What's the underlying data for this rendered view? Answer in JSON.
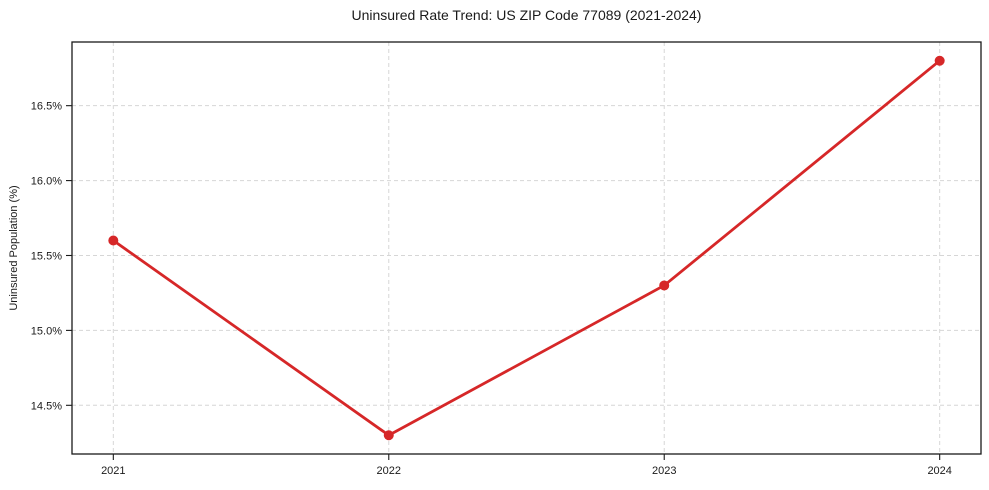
{
  "chart_data": {
    "type": "line",
    "title": "Uninsured Rate Trend: US ZIP Code 77089 (2021-2024)",
    "xlabel": "",
    "ylabel": "Uninsured Population (%)",
    "x": [
      2021,
      2022,
      2023,
      2024
    ],
    "x_tick_labels": [
      "2021",
      "2022",
      "2023",
      "2024"
    ],
    "series": [
      {
        "name": "Uninsured rate",
        "values": [
          15.6,
          14.3,
          15.3,
          16.8
        ]
      }
    ],
    "y_ticks": [
      14.5,
      15.0,
      15.5,
      16.0,
      16.5
    ],
    "y_tick_labels": [
      "14.5%",
      "15.0%",
      "15.5%",
      "16.0%",
      "16.5%"
    ],
    "xlim": [
      2020.85,
      2024.15
    ],
    "ylim": [
      14.175,
      16.925
    ],
    "grid": "dashed-both-axes",
    "legend": "none",
    "colors": {
      "line": "#d62728",
      "marker": "#d62728",
      "grid": "#d6d6d6",
      "spine": "#1a1a1a",
      "text": "#1a1a1a",
      "background": "#ffffff"
    }
  }
}
